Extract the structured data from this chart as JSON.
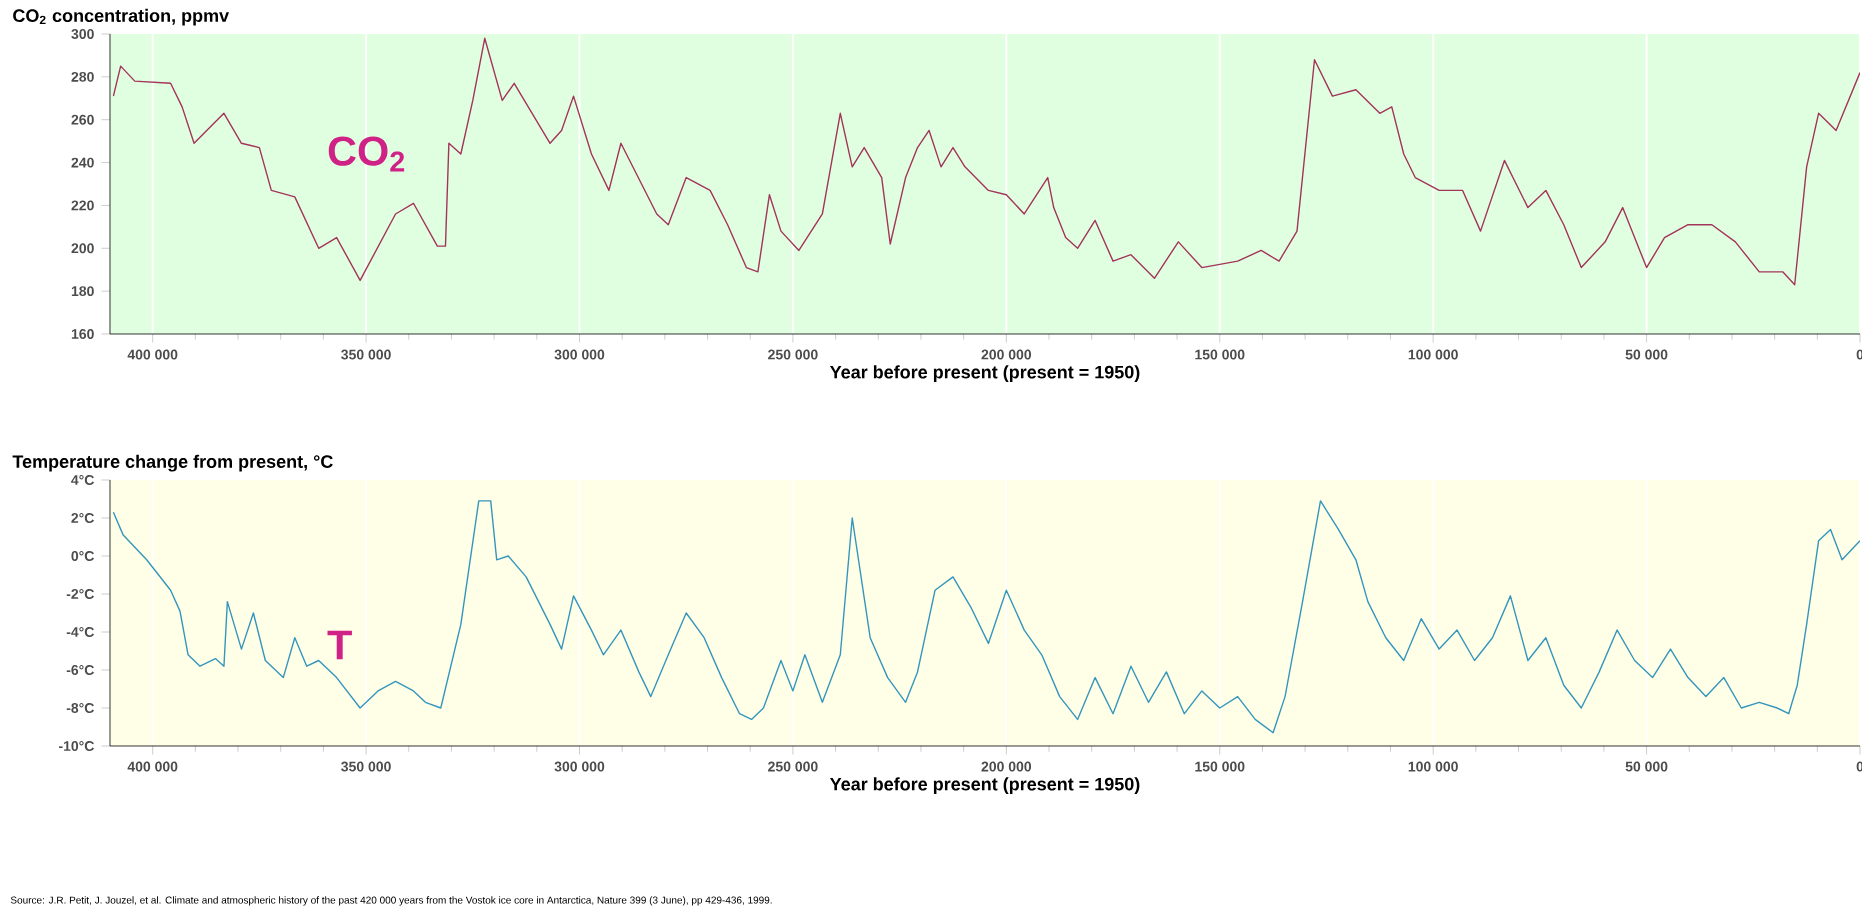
{
  "chart_data": [
    {
      "type": "line",
      "title": "CO$_{2}$ concentration, ppmv",
      "xlabel": "Year before present (present = 1950)",
      "x": [
        409200,
        407500,
        404200,
        395800,
        393100,
        390300,
        383300,
        379200,
        375000,
        372200,
        366700,
        361100,
        356900,
        351400,
        343100,
        338900,
        333300,
        331400,
        330600,
        327800,
        325000,
        322200,
        318100,
        315300,
        311100,
        306900,
        304200,
        301400,
        297200,
        293100,
        290300,
        284700,
        281900,
        279200,
        275000,
        269400,
        265300,
        260900,
        258200,
        255500,
        252800,
        248600,
        243100,
        238900,
        236100,
        233300,
        229200,
        227200,
        223600,
        220800,
        218100,
        215300,
        212500,
        209700,
        204200,
        200000,
        195800,
        190300,
        188900,
        186100,
        183300,
        179200,
        175000,
        170800,
        165300,
        159700,
        154200,
        145800,
        140300,
        136100,
        131900,
        127800,
        123600,
        118100,
        112500,
        109700,
        106900,
        104200,
        98600,
        93100,
        88900,
        83300,
        77800,
        73600,
        69400,
        65300,
        59700,
        55600,
        50000,
        45800,
        40300,
        34700,
        29200,
        23600,
        18100,
        15300,
        12500,
        9700,
        5600,
        0
      ],
      "series": [
        {
          "name": "CO$_{2}$",
          "color": "#a3345a",
          "values": [
            271,
            285,
            278,
            277,
            266,
            249,
            263,
            249,
            247,
            227,
            224,
            200,
            205,
            185,
            216,
            221,
            201,
            201,
            249,
            244,
            269,
            298,
            269,
            277,
            263,
            249,
            255,
            271,
            244,
            227,
            249,
            227,
            216,
            211,
            233,
            227,
            211,
            191,
            189,
            225,
            208,
            199,
            216,
            263,
            238,
            247,
            233,
            202,
            233,
            247,
            255,
            238,
            247,
            238,
            227,
            225,
            216,
            233,
            219,
            205,
            200,
            213,
            194,
            197,
            186,
            203,
            191,
            194,
            199,
            194,
            208,
            288,
            271,
            274,
            263,
            266,
            244,
            233,
            227,
            227,
            208,
            241,
            219,
            227,
            211,
            191,
            203,
            219,
            191,
            205,
            211,
            211,
            203,
            189,
            189,
            183,
            238,
            263,
            255,
            282
          ]
        }
      ],
      "xlim": [
        410000,
        0
      ],
      "xticks": [
        {
          "value": 400000,
          "label": "400 000"
        },
        {
          "value": 350000,
          "label": "350 000"
        },
        {
          "value": 300000,
          "label": "300 000"
        },
        {
          "value": 250000,
          "label": "250 000"
        },
        {
          "value": 200000,
          "label": "200 000"
        },
        {
          "value": 150000,
          "label": "150 000"
        },
        {
          "value": 100000,
          "label": "100 000"
        },
        {
          "value": 50000,
          "label": "50 000"
        },
        0
      ],
      "ylim": [
        160,
        300
      ],
      "yticks": [
        160,
        180,
        200,
        220,
        240,
        260,
        280,
        300
      ],
      "grid": "x"
    },
    {
      "type": "line",
      "title": "Temperature change from present, °C",
      "xlabel": "Year before present (present = 1950)",
      "x": [
        409200,
        406900,
        401400,
        395800,
        393600,
        391700,
        388900,
        385300,
        383300,
        382500,
        379200,
        376400,
        373600,
        369400,
        366700,
        363900,
        361100,
        356900,
        351400,
        347200,
        343100,
        338900,
        336100,
        332500,
        327800,
        323600,
        320800,
        319400,
        316700,
        312500,
        306900,
        304200,
        301400,
        297200,
        294400,
        290300,
        286100,
        283300,
        279200,
        275000,
        270800,
        266700,
        262500,
        259700,
        256900,
        252800,
        250000,
        247200,
        243100,
        238900,
        236100,
        231900,
        227800,
        223600,
        220800,
        216700,
        212500,
        208300,
        204200,
        200000,
        195800,
        191700,
        187500,
        183300,
        179200,
        175000,
        170800,
        166700,
        162500,
        158300,
        154200,
        150000,
        145800,
        141700,
        137500,
        134700,
        130600,
        126400,
        122200,
        118100,
        115300,
        111100,
        106900,
        102800,
        98600,
        94400,
        90300,
        86100,
        81900,
        77800,
        73600,
        69400,
        65300,
        61100,
        56900,
        52800,
        48600,
        44400,
        40300,
        36100,
        31900,
        27800,
        23600,
        19400,
        16700,
        14700,
        12500,
        9700,
        6900,
        4200,
        0
      ],
      "series": [
        {
          "name": "T",
          "color": "#3596bd",
          "values": [
            2.3,
            1.1,
            -0.2,
            -1.8,
            -2.9,
            -5.2,
            -5.8,
            -5.4,
            -5.8,
            -2.4,
            -4.9,
            -3,
            -5.5,
            -6.4,
            -4.3,
            -5.8,
            -5.5,
            -6.4,
            -8,
            -7.1,
            -6.6,
            -7.1,
            -7.7,
            -8,
            -3.6,
            2.9,
            2.9,
            -0.2,
            0,
            -1.1,
            -3.6,
            -4.9,
            -2.1,
            -3.9,
            -5.2,
            -3.9,
            -6.1,
            -7.4,
            -5.2,
            -3,
            -4.3,
            -6.4,
            -8.3,
            -8.6,
            -8,
            -5.5,
            -7.1,
            -5.2,
            -7.7,
            -5.2,
            2,
            -4.3,
            -6.4,
            -7.7,
            -6.1,
            -1.8,
            -1.1,
            -2.7,
            -4.6,
            -1.8,
            -3.9,
            -5.2,
            -7.4,
            -8.6,
            -6.4,
            -8.3,
            -5.8,
            -7.7,
            -6.1,
            -8.3,
            -7.1,
            -8,
            -7.4,
            -8.6,
            -9.3,
            -7.4,
            -2.4,
            2.9,
            1.4,
            -0.2,
            -2.4,
            -4.3,
            -5.5,
            -3.3,
            -4.9,
            -3.9,
            -5.5,
            -4.3,
            -2.1,
            -5.5,
            -4.3,
            -6.8,
            -8,
            -6.1,
            -3.9,
            -5.5,
            -6.4,
            -4.9,
            -6.4,
            -7.4,
            -6.4,
            -8,
            -7.7,
            -8,
            -8.3,
            -6.8,
            -3.6,
            0.8,
            1.4,
            -0.2,
            0.8
          ]
        }
      ],
      "xlim": [
        410000,
        0
      ],
      "xticks": [
        {
          "value": 400000,
          "label": "400 000"
        },
        {
          "value": 350000,
          "label": "350 000"
        },
        {
          "value": 300000,
          "label": "300 000"
        },
        {
          "value": 250000,
          "label": "250 000"
        },
        {
          "value": 200000,
          "label": "200 000"
        },
        {
          "value": 150000,
          "label": "150 000"
        },
        {
          "value": 100000,
          "label": "100 000"
        },
        {
          "value": 50000,
          "label": "50 000"
        },
        0
      ],
      "ylim": [
        -10,
        4
      ],
      "yticks": [
        {
          "value": -10,
          "label": "-10°C"
        },
        {
          "value": -8,
          "label": "-8°C"
        },
        {
          "value": -6,
          "label": "-6°C"
        },
        {
          "value": -4,
          "label": "-4°C"
        },
        {
          "value": -2,
          "label": "-2°C"
        },
        {
          "value": 0,
          "label": "0°C"
        },
        {
          "value": 2,
          "label": "2°C"
        },
        {
          "value": 4,
          "label": "4°C"
        }
      ],
      "grid": "x",
      "annotations": [
        "Source: J.R. Petit, J. Jouzel, et al. Climate and atmospheric history of the past 420 000 years from the Vostok ice core in Antarctica, Nature 399 (3 June), pp 429-436, 1999."
      ]
    }
  ]
}
